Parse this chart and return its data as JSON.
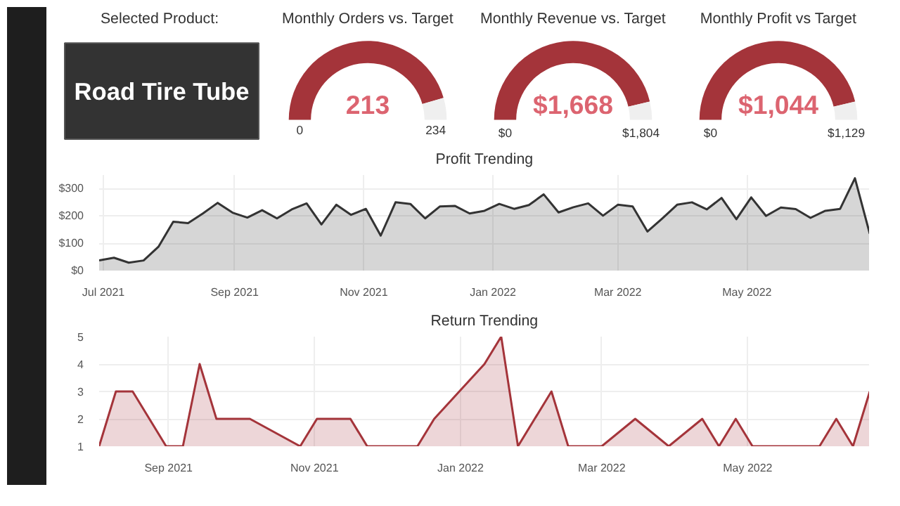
{
  "chart_data": [
    {
      "type": "other",
      "title": "Selected Product:",
      "annotations": [
        "Road Tire Tube"
      ]
    },
    {
      "type": "donut",
      "title": "Monthly Orders vs. Target",
      "categories": [
        null,
        null
      ],
      "values": [
        91.0,
        9.0
      ],
      "colors": [
        "#a4343a",
        "#efefef"
      ],
      "annotations": [
        "0",
        "213",
        "234"
      ]
    },
    {
      "type": "donut",
      "title": "Monthly Revenue vs. Target",
      "categories": [
        null,
        null
      ],
      "values": [
        92.5,
        7.5
      ],
      "colors": [
        "#a4343a",
        "#efefef"
      ],
      "annotations": [
        "$0",
        "$1,668",
        "$1,804"
      ]
    },
    {
      "type": "donut",
      "title": "Monthly Profit vs Target",
      "categories": [
        null,
        null
      ],
      "values": [
        92.5,
        7.5
      ],
      "colors": [
        "#a4343a",
        "#efefef"
      ],
      "annotations": [
        "$0",
        "$1,044",
        "$1,129"
      ]
    },
    {
      "type": "area",
      "title": "Profit Trending",
      "grid": true,
      "xlim": [
        "2021-06-29",
        "2022-06-28"
      ],
      "ylim": [
        0,
        350
      ],
      "xticks": [
        {
          "value": "2021-07-01",
          "label": "Jul 2021"
        },
        {
          "value": "2021-09-01",
          "label": "Sep 2021"
        },
        {
          "value": "2021-11-01",
          "label": "Nov 2021"
        },
        {
          "value": "2022-01-01",
          "label": "Jan 2022"
        },
        {
          "value": "2022-03-01",
          "label": "Mar 2022"
        },
        {
          "value": "2022-05-01",
          "label": "May 2022"
        }
      ],
      "yticks": [
        {
          "value": 0,
          "label": "$0"
        },
        {
          "value": 100,
          "label": "$100"
        },
        {
          "value": 200,
          "label": "$200"
        },
        {
          "value": 300,
          "label": "$300"
        }
      ],
      "x": [
        "2021-06-29",
        "2021-07-06",
        "2021-07-13",
        "2021-07-20",
        "2021-07-27",
        "2021-08-03",
        "2021-08-10",
        "2021-08-17",
        "2021-08-24",
        "2021-08-31",
        "2021-09-07",
        "2021-09-14",
        "2021-09-21",
        "2021-09-28",
        "2021-10-05",
        "2021-10-12",
        "2021-10-19",
        "2021-10-26",
        "2021-11-02",
        "2021-11-09",
        "2021-11-16",
        "2021-11-23",
        "2021-11-30",
        "2021-12-07",
        "2021-12-14",
        "2021-12-21",
        "2021-12-28",
        "2022-01-04",
        "2022-01-11",
        "2022-01-18",
        "2022-01-25",
        "2022-02-01",
        "2022-02-08",
        "2022-02-15",
        "2022-02-22",
        "2022-03-01",
        "2022-03-08",
        "2022-03-15",
        "2022-03-22",
        "2022-03-29",
        "2022-04-05",
        "2022-04-12",
        "2022-04-19",
        "2022-04-26",
        "2022-05-03",
        "2022-05-10",
        "2022-05-17",
        "2022-05-24",
        "2022-05-31",
        "2022-06-07",
        "2022-06-14",
        "2022-06-21",
        "2022-06-28"
      ],
      "series": [
        {
          "color": "#333333",
          "values": [
            37,
            47,
            29,
            37,
            87,
            179,
            174,
            209,
            248,
            212,
            194,
            221,
            191,
            224,
            246,
            169,
            241,
            204,
            226,
            128,
            250,
            244,
            191,
            235,
            237,
            209,
            219,
            244,
            226,
            240,
            279,
            213,
            232,
            246,
            201,
            241,
            235,
            143,
            191,
            241,
            250,
            224,
            266,
            188,
            268,
            200,
            231,
            225,
            193,
            219,
            226,
            338,
            135
          ]
        }
      ]
    },
    {
      "type": "area",
      "title": "Return Trending",
      "grid": true,
      "xlim": [
        "2021-08-03",
        "2022-06-21"
      ],
      "ylim": [
        1,
        5
      ],
      "xticks": [
        {
          "value": "2021-09-01",
          "label": "Sep 2021"
        },
        {
          "value": "2021-11-01",
          "label": "Nov 2021"
        },
        {
          "value": "2022-01-01",
          "label": "Jan 2022"
        },
        {
          "value": "2022-03-01",
          "label": "Mar 2022"
        },
        {
          "value": "2022-05-01",
          "label": "May 2022"
        }
      ],
      "yticks": [
        1,
        2,
        3,
        4,
        5
      ],
      "x": [
        "2021-08-03",
        "2021-08-10",
        "2021-08-17",
        "2021-08-31",
        "2021-09-07",
        "2021-09-14",
        "2021-09-21",
        "2021-10-05",
        "2021-10-26",
        "2021-11-02",
        "2021-11-16",
        "2021-11-23",
        "2021-12-14",
        "2021-12-21",
        "2022-01-11",
        "2022-01-18",
        "2022-01-25",
        "2022-02-08",
        "2022-02-15",
        "2022-03-01",
        "2022-03-15",
        "2022-03-29",
        "2022-04-12",
        "2022-04-19",
        "2022-04-26",
        "2022-05-03",
        "2022-05-31",
        "2022-06-07",
        "2022-06-14",
        "2022-06-21"
      ],
      "series": [
        {
          "color": "#a4343a",
          "values": [
            1,
            3,
            3,
            1,
            1,
            4,
            2,
            2,
            1,
            2,
            2,
            1,
            1,
            2,
            4,
            5,
            1,
            3,
            1,
            1,
            2,
            1,
            2,
            1,
            2,
            1,
            1,
            2,
            1,
            3
          ]
        }
      ]
    }
  ]
}
